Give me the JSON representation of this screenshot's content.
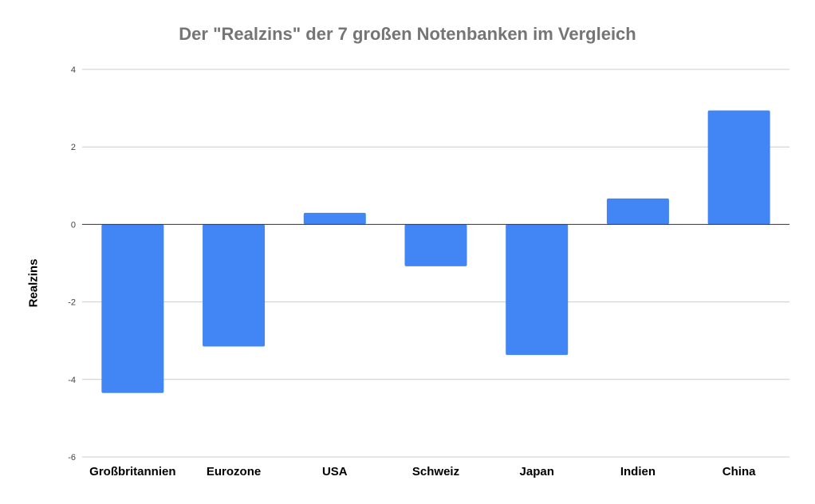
{
  "chart_data": {
    "type": "bar",
    "title": "Der \"Realzins\" der 7 großen Notenbanken im Vergleich",
    "xlabel": "",
    "ylabel": "Realzins",
    "categories": [
      "Großbritannien",
      "Eurozone",
      "USA",
      "Schweiz",
      "Japan",
      "Indien",
      "China"
    ],
    "values": [
      -4.35,
      -3.15,
      0.3,
      -1.08,
      -3.37,
      0.67,
      2.94
    ],
    "ylim": [
      -6,
      4
    ],
    "yticks": [
      4,
      2,
      0,
      -2,
      -4,
      -6
    ],
    "grid": true,
    "legend": "none",
    "colors": {
      "bar": "#4285f4",
      "grid": "#cccccc",
      "zero_line": "#333333",
      "title": "#757575"
    }
  }
}
